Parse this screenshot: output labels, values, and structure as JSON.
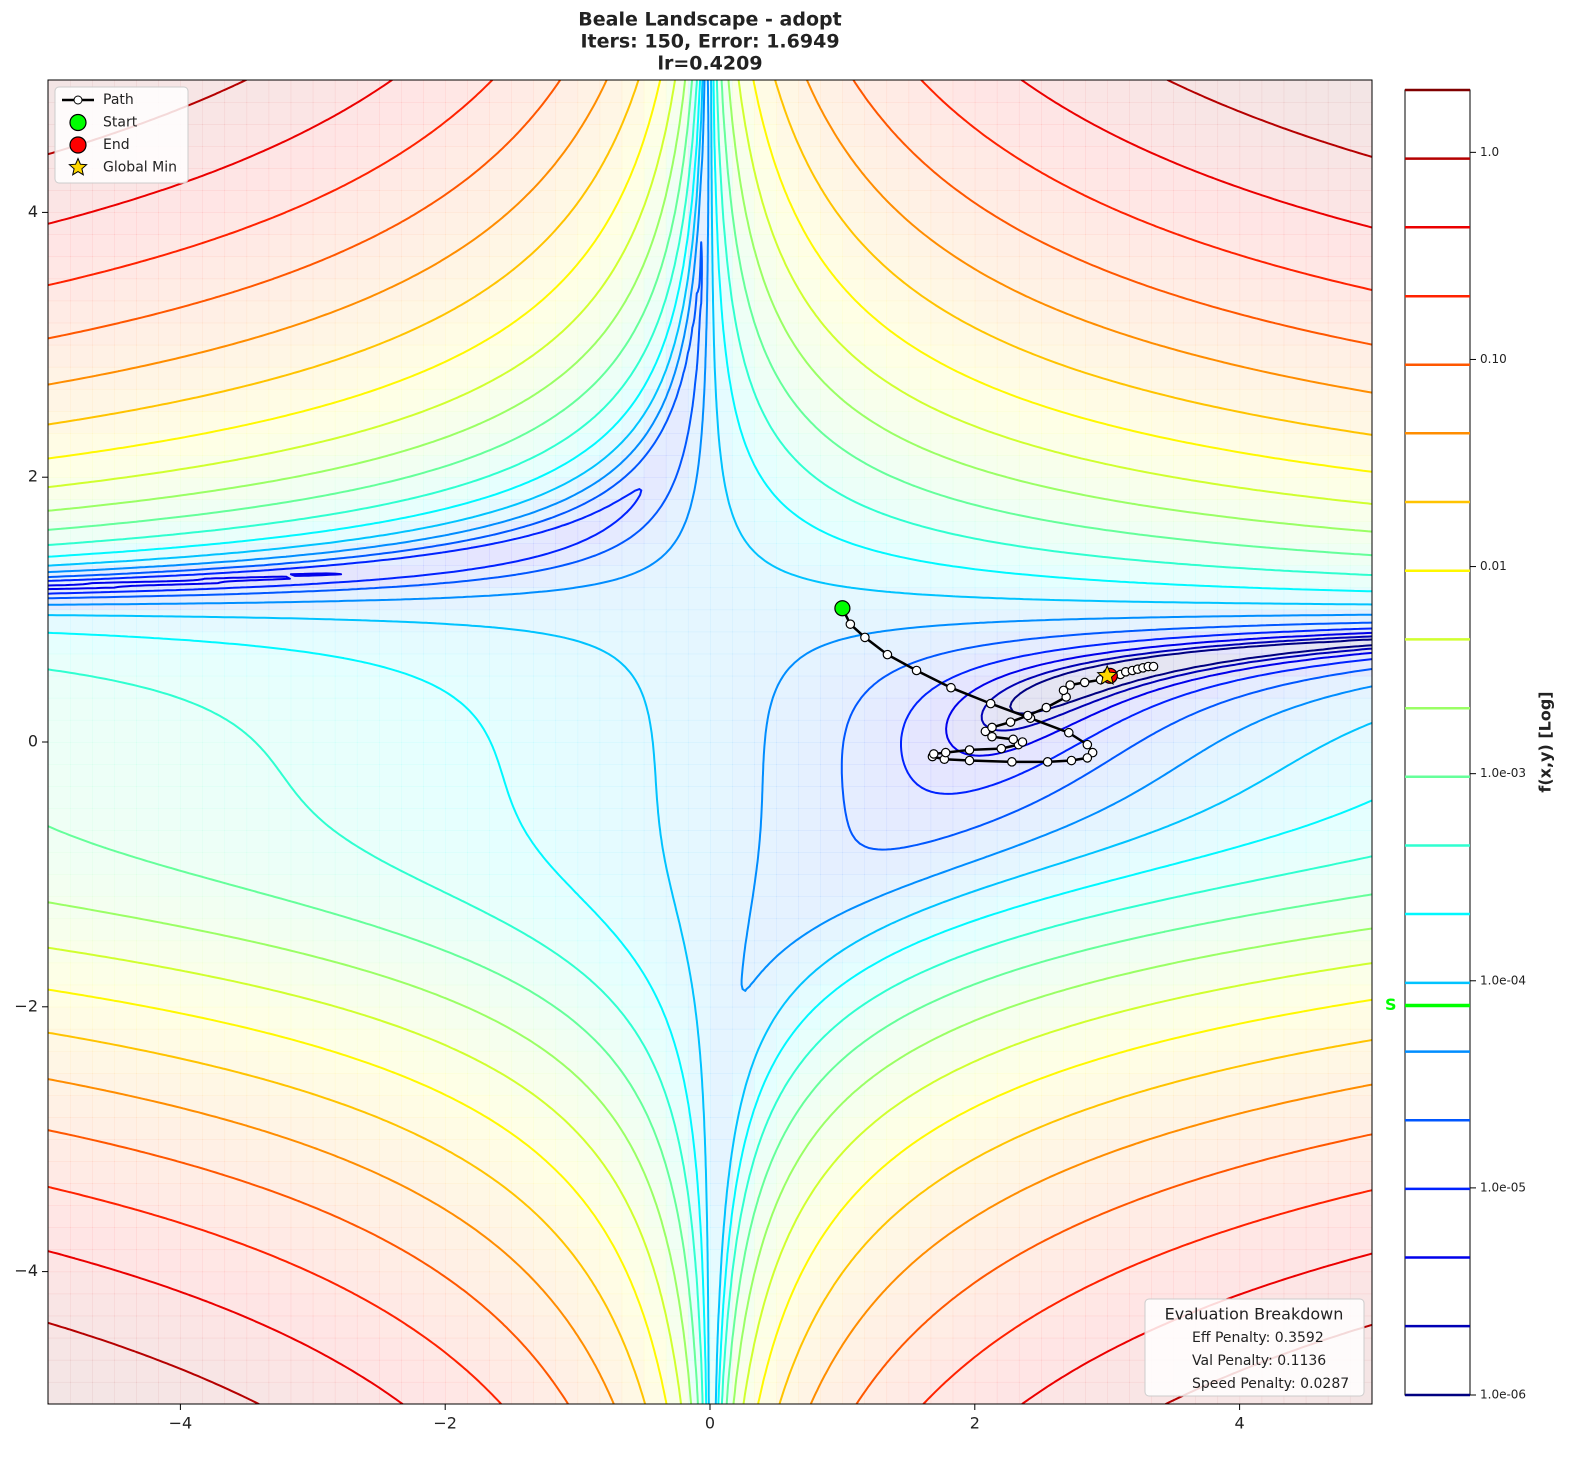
{
  "chart_data": {
    "type": "contour",
    "function": "beale",
    "title": [
      "Beale Landscape - adopt",
      "Iters: 150, Error: 1.6949",
      "lr=0.4209"
    ],
    "xlim": [
      -5,
      5
    ],
    "ylim": [
      -5,
      5
    ],
    "xticks": [
      {
        "value": -4,
        "label": "−4"
      },
      {
        "value": -2,
        "label": "−2"
      },
      0,
      2,
      4
    ],
    "yticks": [
      {
        "value": -4,
        "label": "−4"
      },
      {
        "value": -2,
        "label": "−2"
      },
      0,
      2,
      4
    ],
    "legend": "upper left",
    "series": [
      {
        "name": "Path",
        "color": "#000000",
        "x": [
          1.0,
          1.06,
          1.17,
          1.34,
          1.56,
          1.82,
          2.12,
          2.42,
          2.71,
          2.85,
          2.89,
          2.85,
          2.73,
          2.55,
          2.28,
          1.96,
          1.77,
          1.68,
          1.69,
          1.78,
          1.96,
          2.2,
          2.33,
          2.36,
          2.29,
          2.13,
          2.08,
          2.13,
          2.27,
          2.4,
          2.54,
          2.69,
          2.67,
          2.72,
          2.83,
          2.95,
          3.04,
          3.1,
          3.14,
          3.19,
          3.23,
          3.27,
          3.31,
          3.35,
          3.02
        ],
        "y": [
          1.01,
          0.89,
          0.79,
          0.66,
          0.54,
          0.41,
          0.29,
          0.18,
          0.07,
          -0.02,
          -0.08,
          -0.12,
          -0.14,
          -0.15,
          -0.15,
          -0.14,
          -0.13,
          -0.11,
          -0.09,
          -0.08,
          -0.06,
          -0.05,
          -0.02,
          0.0,
          0.02,
          0.04,
          0.08,
          0.11,
          0.15,
          0.2,
          0.26,
          0.34,
          0.39,
          0.43,
          0.45,
          0.47,
          0.5,
          0.51,
          0.53,
          0.54,
          0.55,
          0.56,
          0.57,
          0.57,
          0.5
        ]
      }
    ],
    "points": [
      {
        "name": "Start",
        "color": "#00ff00",
        "marker": "circle",
        "x": 1.0,
        "y": 1.01
      },
      {
        "name": "End",
        "color": "#ff0000",
        "marker": "circle",
        "x": 3.02,
        "y": 0.5
      },
      {
        "name": "Global Min",
        "color": "#ffd700",
        "marker": "star",
        "x": 3,
        "y": 0.5
      }
    ],
    "colorbar": {
      "label": "f(x,y) [Log]",
      "lim": [
        1e-06,
        2
      ],
      "log": true,
      "colormap": "jet",
      "ticks": [
        {
          "value": 1e-06,
          "label": "1.0e-06"
        },
        {
          "value": 1e-05,
          "label": "1.0e-05"
        },
        {
          "value": 0.0001,
          "label": "1.0e-04"
        },
        {
          "value": 0.001,
          "label": "1.0e-03"
        },
        0.01,
        {
          "value": 0.1,
          "label": "0.10"
        },
        {
          "value": 1,
          "label": "1.0"
        }
      ],
      "levels": [
        1e-06,
        2.15e-06,
        4.61e-06,
        9.89e-06,
        2.12e-05,
        4.55e-05,
        9.77e-05,
        0.00021,
        0.00045,
        0.000966,
        0.00207,
        0.00445,
        0.00955,
        0.0205,
        0.044,
        0.0943,
        0.202,
        0.435,
        0.932,
        2
      ],
      "marker": {
        "label": "S",
        "value": 7.6e-05,
        "color": "#00ff00"
      }
    },
    "annotation": {
      "title": "Evaluation Breakdown",
      "lines": [
        "Eff Penalty: 0.3592",
        "Val Penalty: 0.1136",
        "Speed Penalty: 0.0287"
      ]
    }
  }
}
